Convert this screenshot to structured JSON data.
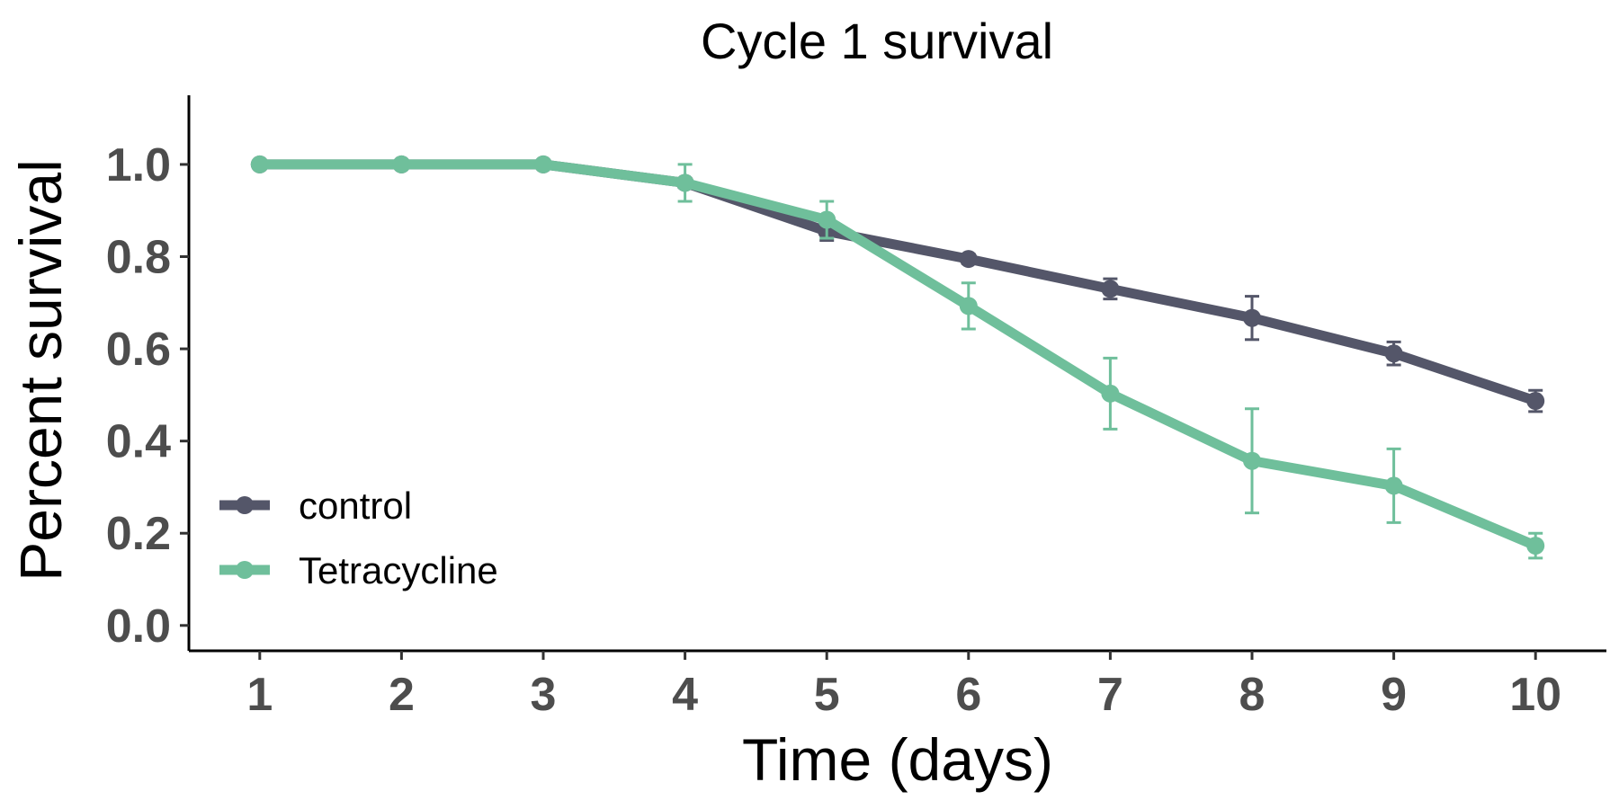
{
  "chart_data": {
    "type": "line",
    "title": "Cycle 1 survival",
    "xlabel": "Time (days)",
    "ylabel": "Percent survival",
    "x": [
      1,
      2,
      3,
      4,
      5,
      6,
      7,
      8,
      9,
      10
    ],
    "x_ticks": [
      "1",
      "2",
      "3",
      "4",
      "5",
      "6",
      "7",
      "8",
      "9",
      "10"
    ],
    "y_ticks": [
      "0.0",
      "0.2",
      "0.4",
      "0.6",
      "0.8",
      "1.0"
    ],
    "xlim": [
      0.5,
      10.5
    ],
    "ylim": [
      -0.055,
      1.15
    ],
    "grid": false,
    "legend_position": "bottom-left",
    "series": [
      {
        "name": "control",
        "color": "#545669",
        "values": [
          1.0,
          1.0,
          1.0,
          0.96,
          0.855,
          0.795,
          0.73,
          0.667,
          0.59,
          0.487
        ],
        "error": [
          0,
          0,
          0,
          0.01,
          0.02,
          0.01,
          0.022,
          0.047,
          0.025,
          0.023
        ]
      },
      {
        "name": "Tetracycline",
        "color": "#6fbf9b",
        "values": [
          1.0,
          1.0,
          1.0,
          0.96,
          0.88,
          0.693,
          0.503,
          0.357,
          0.303,
          0.173
        ],
        "error": [
          0,
          0,
          0,
          0.04,
          0.04,
          0.05,
          0.077,
          0.113,
          0.08,
          0.027
        ]
      }
    ]
  }
}
